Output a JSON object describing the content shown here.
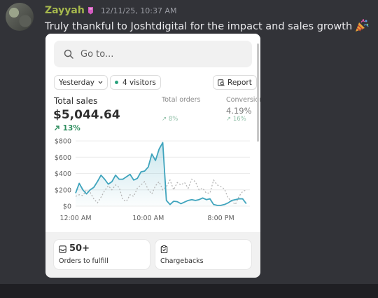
{
  "message": {
    "username": "Zayyah",
    "timestamp": "12/11/25, 10:37 AM",
    "text": "Truly thankful to Joshtdigital for the impact and sales growth",
    "username_color": "#a6b84d",
    "emoji_icon": "party-popper-icon",
    "badge_icon": "role-badge-icon"
  },
  "card": {
    "search": {
      "placeholder": "Go to..."
    },
    "filters": {
      "date": "Yesterday",
      "visitors": "4 visitors",
      "report": "Report"
    },
    "metrics": {
      "total_sales": {
        "label": "Total sales",
        "value": "$5,044.64",
        "change": "13%"
      },
      "total_orders": {
        "label": "Total orders",
        "change": "8%"
      },
      "conversion": {
        "label": "Conversion",
        "value": "4.19%",
        "change": "16%"
      }
    },
    "tiles": {
      "orders": {
        "value": "50+",
        "label": "Orders to fulfill"
      },
      "chargebacks": {
        "label": "Chargebacks"
      }
    }
  },
  "chart_data": {
    "type": "line",
    "y_ticks": [
      "$800",
      "$600",
      "$400",
      "$200",
      "$0"
    ],
    "x_ticks": [
      "12:00 AM",
      "10:00 AM",
      "8:00 PM"
    ],
    "ylim": [
      0,
      800
    ],
    "xlim": [
      0,
      24
    ],
    "grid": true,
    "accent_color": "#3fa4bd",
    "series": [
      {
        "style": "solid",
        "x": [
          0,
          0.5,
          1,
          1.5,
          2,
          2.5,
          3,
          3.5,
          4,
          4.5,
          5,
          5.5,
          6,
          6.5,
          7,
          7.5,
          8,
          8.5,
          9,
          9.5,
          10,
          10.5,
          11,
          11.5,
          12,
          12.5,
          13,
          13.5,
          14,
          14.5,
          15,
          15.5,
          16,
          16.5,
          17,
          17.5,
          18,
          18.5,
          19,
          19.5,
          20,
          20.5,
          21,
          21.5,
          22,
          22.5,
          23,
          23.5
        ],
        "values": [
          160,
          280,
          200,
          150,
          200,
          230,
          300,
          380,
          330,
          270,
          300,
          380,
          330,
          330,
          360,
          390,
          320,
          340,
          420,
          430,
          480,
          640,
          560,
          700,
          780,
          70,
          20,
          60,
          55,
          30,
          50,
          70,
          80,
          70,
          80,
          100,
          80,
          90,
          20,
          10,
          10,
          20,
          40,
          70,
          80,
          90,
          90,
          30
        ]
      },
      {
        "style": "dotted",
        "x": [
          0,
          0.5,
          1,
          1.5,
          2,
          2.5,
          3,
          3.5,
          4,
          4.5,
          5,
          5.5,
          6,
          6.5,
          7,
          7.5,
          8,
          8.5,
          9,
          9.5,
          10,
          10.5,
          11,
          11.5,
          12,
          12.5,
          13,
          13.5,
          14,
          14.5,
          15,
          15.5,
          16,
          16.5,
          17,
          17.5,
          18,
          18.5,
          19,
          19.5,
          20,
          20.5,
          21,
          21.5,
          22,
          22.5,
          23,
          23.5
        ],
        "values": [
          120,
          140,
          130,
          200,
          170,
          90,
          40,
          110,
          190,
          250,
          200,
          260,
          230,
          80,
          60,
          140,
          120,
          220,
          260,
          300,
          200,
          150,
          250,
          300,
          200,
          240,
          320,
          200,
          290,
          260,
          290,
          220,
          330,
          300,
          200,
          220,
          160,
          160,
          320,
          260,
          240,
          210,
          100,
          60,
          20,
          120,
          180,
          200
        ]
      }
    ]
  }
}
